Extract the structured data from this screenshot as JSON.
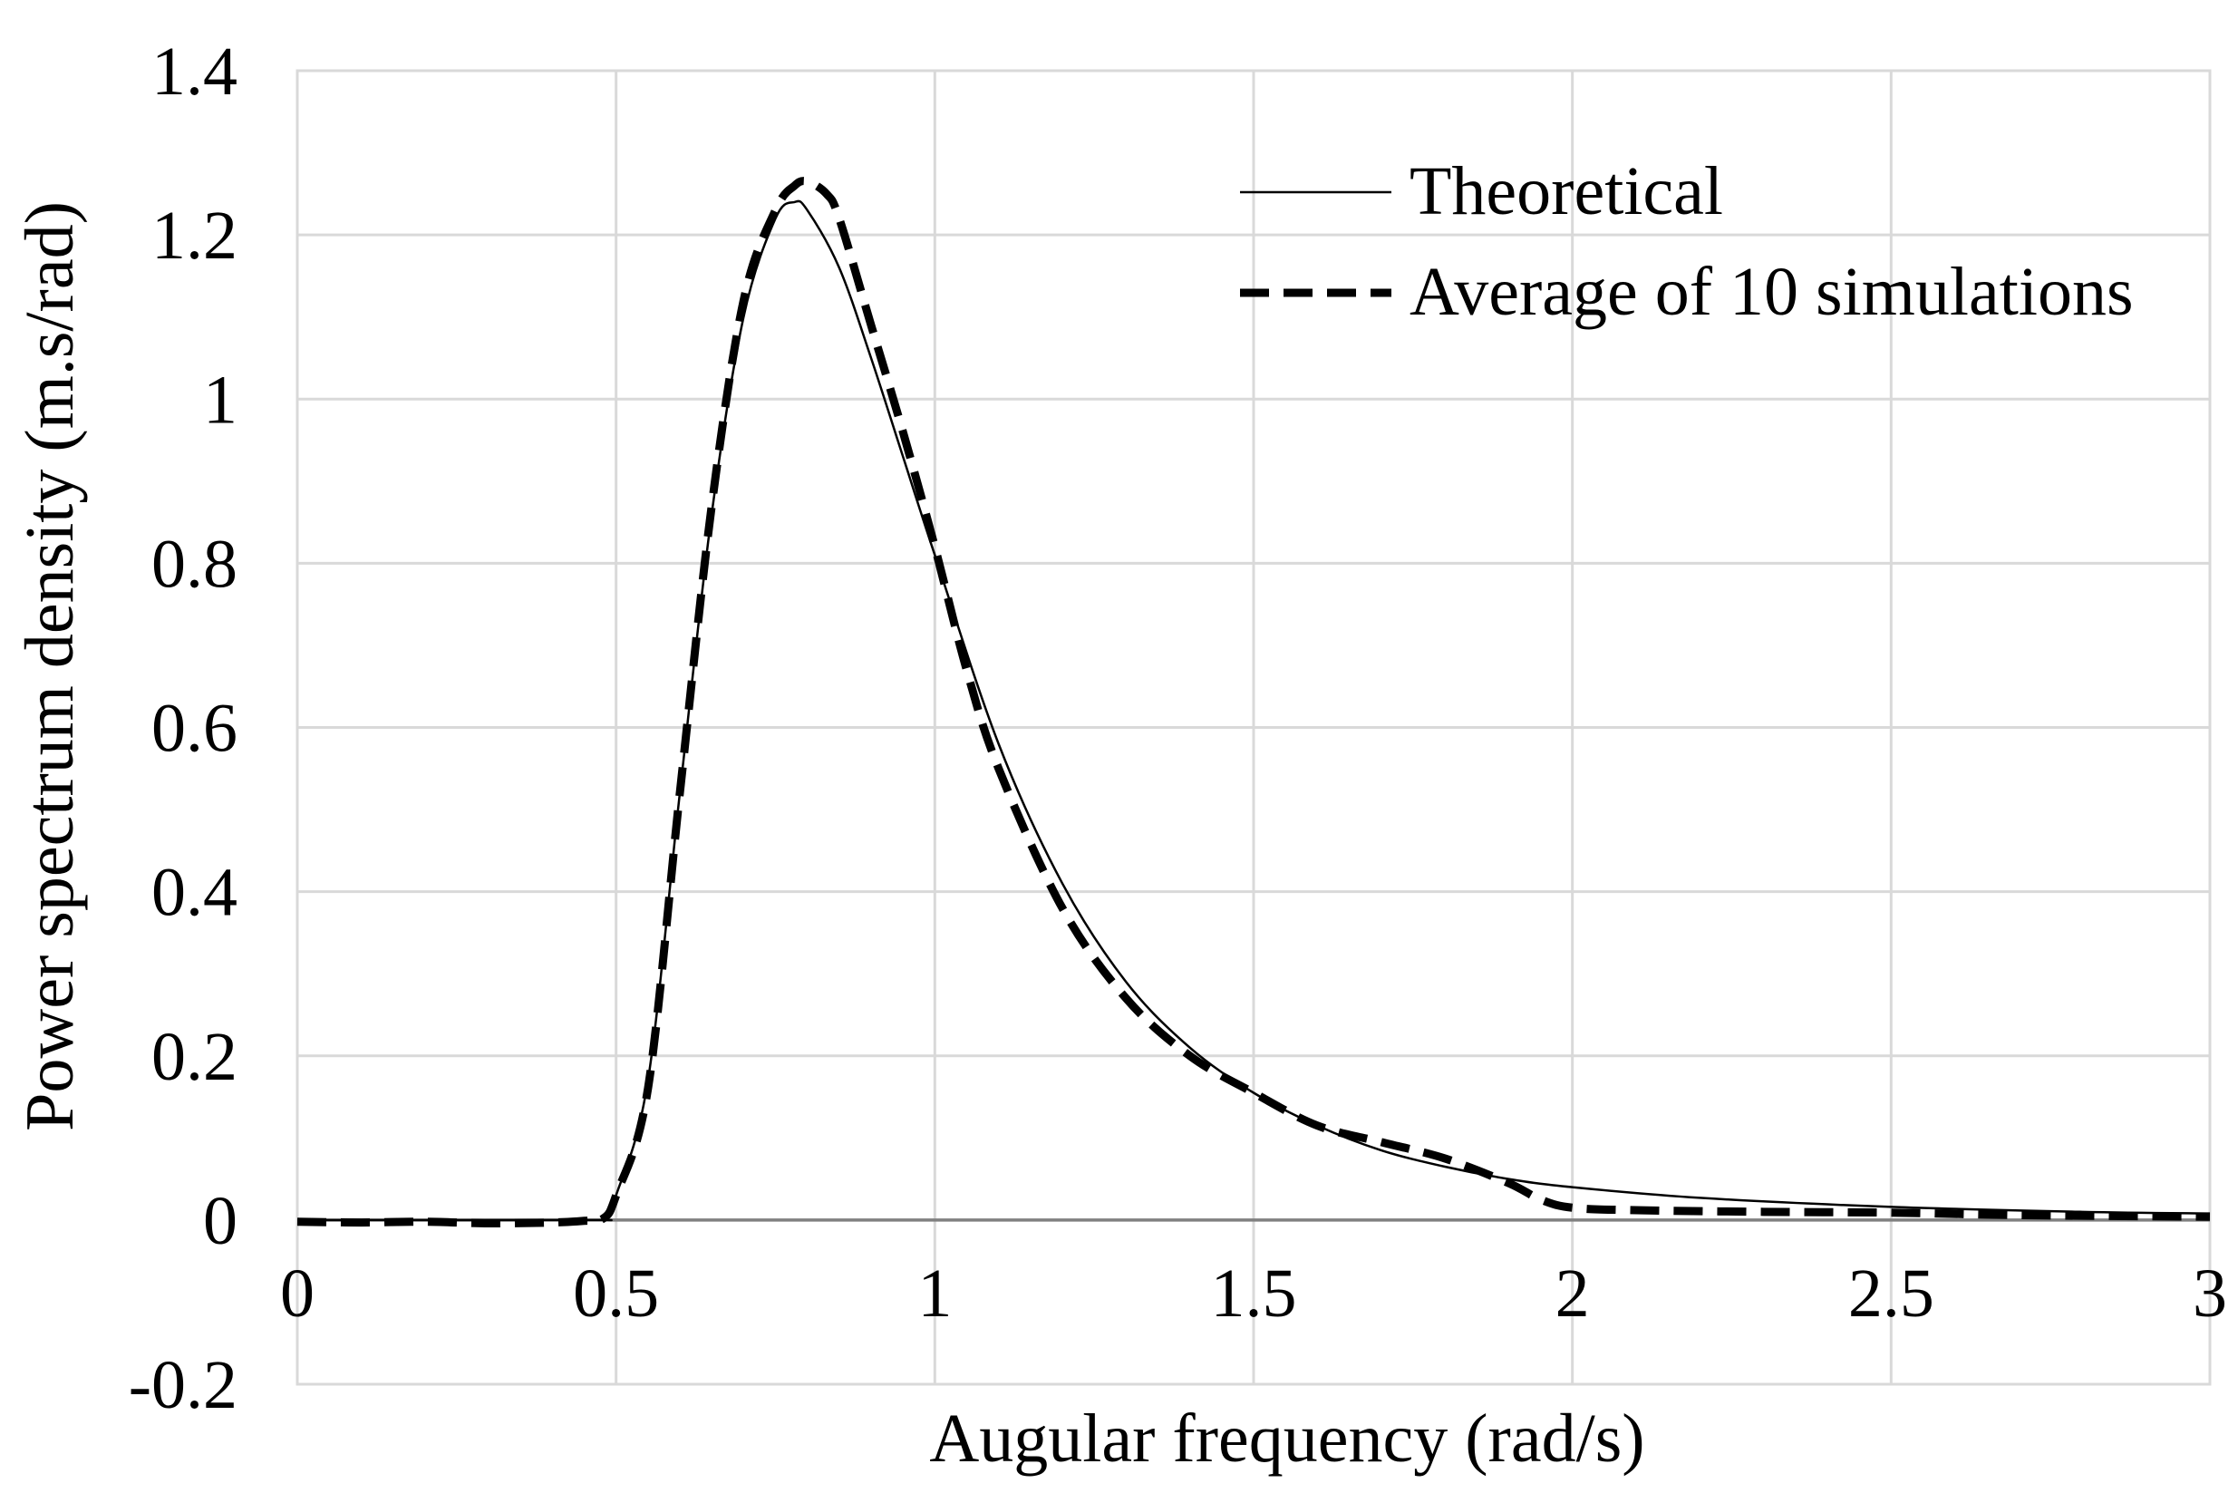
{
  "chart_data": {
    "type": "line",
    "title": "",
    "xlabel": "Augular frequency (rad/s)",
    "ylabel": "Power spectrum density (m.s/rad)",
    "xlim": [
      0,
      3
    ],
    "ylim": [
      -0.2,
      1.4
    ],
    "x_ticks": [
      {
        "value": 0,
        "label": "0"
      },
      {
        "value": 0.5,
        "label": "0.5"
      },
      {
        "value": 1,
        "label": "1"
      },
      {
        "value": 1.5,
        "label": "1.5"
      },
      {
        "value": 2,
        "label": "2"
      },
      {
        "value": 2.5,
        "label": "2.5"
      },
      {
        "value": 3,
        "label": "3"
      }
    ],
    "y_ticks": [
      {
        "value": -0.2,
        "label": "-0.2"
      },
      {
        "value": 0,
        "label": "0"
      },
      {
        "value": 0.2,
        "label": "0.2"
      },
      {
        "value": 0.4,
        "label": "0.4"
      },
      {
        "value": 0.6,
        "label": "0.6"
      },
      {
        "value": 0.8,
        "label": "0.8"
      },
      {
        "value": 1,
        "label": "1"
      },
      {
        "value": 1.2,
        "label": "1.2"
      },
      {
        "value": 1.4,
        "label": "1.4"
      }
    ],
    "grid": true,
    "legend_position": "top-right",
    "series": [
      {
        "name": "Theoretical",
        "style": "solid",
        "color": "#000000",
        "x": [
          0,
          0.45,
          0.48,
          0.5,
          0.55,
          0.6,
          0.65,
          0.7,
          0.75,
          0.78,
          0.8,
          0.85,
          0.9,
          0.95,
          1.0,
          1.1,
          1.2,
          1.3,
          1.4,
          1.5,
          1.6,
          1.7,
          1.8,
          1.9,
          2.0,
          2.2,
          2.5,
          2.8,
          3.0
        ],
        "y": [
          0,
          0,
          0.003,
          0.03,
          0.17,
          0.52,
          0.86,
          1.1,
          1.22,
          1.24,
          1.23,
          1.16,
          1.05,
          0.93,
          0.81,
          0.58,
          0.41,
          0.29,
          0.21,
          0.155,
          0.115,
          0.085,
          0.065,
          0.05,
          0.04,
          0.027,
          0.016,
          0.01,
          0.008
        ]
      },
      {
        "name": "Average of 10 simulations",
        "style": "dashed",
        "color": "#000000",
        "x": [
          0,
          0.1,
          0.2,
          0.3,
          0.4,
          0.45,
          0.48,
          0.5,
          0.55,
          0.6,
          0.65,
          0.7,
          0.75,
          0.78,
          0.8,
          0.83,
          0.85,
          0.9,
          0.95,
          1.0,
          1.05,
          1.1,
          1.2,
          1.3,
          1.4,
          1.5,
          1.6,
          1.7,
          1.8,
          1.9,
          1.95,
          2.0,
          2.1,
          2.3,
          2.5,
          2.7,
          3.0
        ],
        "y": [
          -0.002,
          -0.003,
          -0.002,
          -0.004,
          -0.003,
          -0.001,
          0.002,
          0.03,
          0.16,
          0.52,
          0.87,
          1.12,
          1.23,
          1.26,
          1.265,
          1.25,
          1.22,
          1.09,
          0.96,
          0.82,
          0.67,
          0.55,
          0.38,
          0.27,
          0.2,
          0.155,
          0.115,
          0.095,
          0.075,
          0.045,
          0.025,
          0.015,
          0.012,
          0.01,
          0.009,
          0.006,
          0.004
        ]
      }
    ]
  }
}
